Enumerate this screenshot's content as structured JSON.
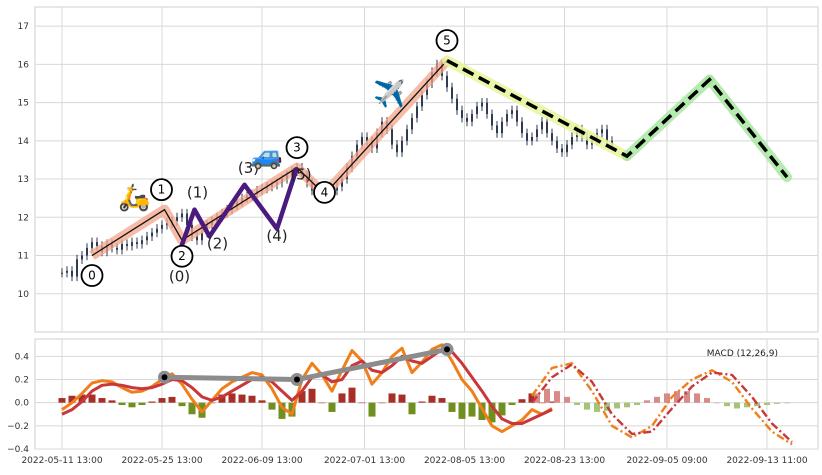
{
  "chart_data": [
    {
      "type": "candlestick-with-elliott-wave",
      "grid": true,
      "ylim": [
        9,
        17.5
      ],
      "yticks": [
        "10",
        "11",
        "12",
        "13",
        "14",
        "15",
        "16",
        "17"
      ],
      "xticks": [
        "2022-05-11 13:00",
        "2022-05-25 13:00",
        "2022-06-09 13:00",
        "2022-07-01 13:00",
        "2022-08-05 13:00",
        "2022-08-23 13:00",
        "2022-09-05 09:00",
        "2022-09-13 11:00"
      ],
      "price_series": {
        "x": [
          0,
          2,
          4,
          6,
          8,
          10,
          12,
          14,
          16,
          18,
          20,
          22,
          24,
          26,
          28,
          30,
          32,
          34,
          36,
          38,
          40,
          42,
          44,
          46,
          48,
          50,
          52,
          54,
          56,
          58,
          60,
          62,
          64,
          66,
          68,
          70,
          72,
          74,
          76,
          78,
          80,
          82,
          84,
          86,
          88,
          90,
          92,
          94,
          96,
          98,
          100,
          102,
          104,
          106,
          108,
          110,
          112,
          114,
          116,
          118,
          120,
          122,
          124,
          126,
          128,
          130,
          132,
          134,
          136,
          138,
          140,
          142,
          144,
          146,
          148,
          150,
          152,
          154,
          156,
          158,
          160,
          162,
          164,
          166,
          168,
          170,
          172,
          174,
          176,
          178,
          180,
          182,
          184,
          186,
          188,
          190,
          192,
          194,
          196,
          198,
          200,
          202,
          204,
          206,
          208,
          210,
          212,
          214,
          216,
          218,
          220
        ],
        "close": [
          10.55,
          10.6,
          10.45,
          10.9,
          11.0,
          11.2,
          11.35,
          11.25,
          11.1,
          11.3,
          11.2,
          11.15,
          11.3,
          11.25,
          11.35,
          11.3,
          11.4,
          11.5,
          11.6,
          11.7,
          11.8,
          11.85,
          11.9,
          12.0,
          12.1,
          11.8,
          11.5,
          11.4,
          11.6,
          11.8,
          11.9,
          12.0,
          12.1,
          12.2,
          12.3,
          12.4,
          12.5,
          12.55,
          12.6,
          12.7,
          12.75,
          12.8,
          12.85,
          12.9,
          13.0,
          13.1,
          13.2,
          13.3,
          13.1,
          12.9,
          12.7,
          12.6,
          12.5,
          12.6,
          12.7,
          12.8,
          13.0,
          13.3,
          13.6,
          13.9,
          14.1,
          14.0,
          13.8,
          14.2,
          14.5,
          14.3,
          13.9,
          13.7,
          14.0,
          14.3,
          14.6,
          14.9,
          15.2,
          15.5,
          15.8,
          16.0,
          15.7,
          15.4,
          15.1,
          14.8,
          14.6,
          14.5,
          14.7,
          14.9,
          15.0,
          14.7,
          14.4,
          14.2,
          14.5,
          14.7,
          14.8,
          14.5,
          14.2,
          14.0,
          14.1,
          14.3,
          14.5,
          14.2,
          14.0,
          13.8,
          13.7,
          13.9,
          14.1,
          14.3,
          14.1,
          13.9,
          14.0,
          14.2,
          14.3,
          14.0,
          13.9
        ]
      },
      "wave_points": [
        {
          "label": "0",
          "x": 12,
          "y": 11.0
        },
        {
          "label": "1",
          "x": 41,
          "y": 12.2
        },
        {
          "label": "2",
          "x": 48,
          "y": 11.4
        },
        {
          "label": "3",
          "x": 94,
          "y": 13.3
        },
        {
          "label": "4",
          "x": 105,
          "y": 12.6
        },
        {
          "label": "5",
          "x": 154,
          "y": 16.1
        }
      ],
      "sub_wave": [
        {
          "label": "(0)",
          "x": 47,
          "y": 11.1
        },
        {
          "label": "(1)",
          "x": 53,
          "y": 12.2
        },
        {
          "label": "(2)",
          "x": 59,
          "y": 11.5
        },
        {
          "label": "(3)",
          "x": 73,
          "y": 12.85
        },
        {
          "label": "(4)",
          "x": 86,
          "y": 11.7
        },
        {
          "label": "(5)",
          "x": 94,
          "y": 13.3
        }
      ],
      "projection": [
        {
          "x": 154,
          "y": 16.1
        },
        {
          "x": 226,
          "y": 13.6
        },
        {
          "x": 259,
          "y": 15.6
        },
        {
          "x": 290,
          "y": 13.05
        }
      ],
      "emojis": [
        {
          "symbol": "🛵",
          "x": 29,
          "y": 12.3
        },
        {
          "symbol": "🚙",
          "x": 82,
          "y": 13.4
        },
        {
          "symbol": "✈️",
          "x": 131,
          "y": 15.0
        }
      ]
    },
    {
      "type": "macd",
      "legend": "MACD (12,26,9)",
      "grid": true,
      "ylim": [
        -0.4,
        0.55
      ],
      "yticks": [
        "−0.4",
        "−0.2",
        "0.0",
        "0.2",
        "0.4"
      ],
      "macd": {
        "x": [
          0,
          4,
          8,
          12,
          16,
          20,
          24,
          28,
          32,
          36,
          40,
          44,
          48,
          52,
          56,
          60,
          64,
          68,
          72,
          76,
          80,
          84,
          88,
          92,
          96,
          100,
          104,
          108,
          112,
          116,
          120,
          124,
          128,
          132,
          136,
          140,
          144,
          148,
          152,
          156,
          160,
          164,
          168,
          172,
          176,
          180,
          184,
          188,
          192,
          196
        ],
        "values": [
          -0.06,
          0.0,
          0.08,
          0.17,
          0.19,
          0.18,
          0.13,
          0.09,
          0.1,
          0.14,
          0.2,
          0.25,
          0.16,
          0.03,
          -0.08,
          0.02,
          0.12,
          0.18,
          0.22,
          0.26,
          0.24,
          0.12,
          -0.04,
          -0.1,
          0.2,
          0.34,
          0.24,
          0.1,
          0.28,
          0.45,
          0.36,
          0.16,
          0.26,
          0.4,
          0.47,
          0.26,
          0.35,
          0.46,
          0.5,
          0.36,
          0.2,
          0.1,
          -0.05,
          -0.2,
          -0.25,
          -0.2,
          -0.15,
          -0.06,
          -0.1,
          -0.05
        ]
      },
      "signal": {
        "x": [
          0,
          4,
          8,
          12,
          16,
          20,
          24,
          28,
          32,
          36,
          40,
          44,
          48,
          52,
          56,
          60,
          64,
          68,
          72,
          76,
          80,
          84,
          88,
          92,
          96,
          100,
          104,
          108,
          112,
          116,
          120,
          124,
          128,
          132,
          136,
          140,
          144,
          148,
          152,
          156,
          160,
          164,
          168,
          172,
          176,
          180,
          184,
          188,
          192,
          196
        ],
        "values": [
          -0.1,
          -0.06,
          0.01,
          0.1,
          0.15,
          0.16,
          0.15,
          0.13,
          0.12,
          0.13,
          0.16,
          0.2,
          0.19,
          0.13,
          0.05,
          0.02,
          0.05,
          0.1,
          0.15,
          0.2,
          0.22,
          0.18,
          0.1,
          0.02,
          0.1,
          0.22,
          0.24,
          0.18,
          0.2,
          0.32,
          0.36,
          0.28,
          0.26,
          0.32,
          0.4,
          0.36,
          0.34,
          0.4,
          0.46,
          0.44,
          0.34,
          0.22,
          0.1,
          -0.03,
          -0.14,
          -0.18,
          -0.18,
          -0.14,
          -0.1,
          -0.06
        ]
      },
      "histogram": {
        "x": [
          0,
          4,
          8,
          12,
          16,
          20,
          24,
          28,
          32,
          36,
          40,
          44,
          48,
          52,
          56,
          60,
          64,
          68,
          72,
          76,
          80,
          84,
          88,
          92,
          96,
          100,
          104,
          108,
          112,
          116,
          120,
          124,
          128,
          132,
          136,
          140,
          144,
          148,
          152,
          156,
          160,
          164,
          168,
          172,
          176,
          180,
          184,
          188,
          192,
          196
        ],
        "values": [
          0.04,
          0.06,
          0.07,
          0.07,
          0.04,
          0.02,
          -0.02,
          -0.04,
          -0.02,
          0.01,
          0.04,
          0.05,
          -0.03,
          -0.1,
          -0.13,
          0.0,
          0.07,
          0.08,
          0.07,
          0.06,
          0.02,
          -0.06,
          -0.14,
          -0.12,
          0.1,
          0.12,
          0.0,
          -0.08,
          0.08,
          0.13,
          0.0,
          -0.12,
          0.0,
          0.08,
          0.07,
          -0.1,
          0.01,
          0.06,
          0.04,
          -0.08,
          -0.14,
          -0.12,
          -0.15,
          -0.17,
          -0.11,
          -0.02,
          0.03,
          0.08,
          0.0,
          0.01
        ]
      },
      "pivots": [
        {
          "x": 41,
          "y": 0.22
        },
        {
          "x": 94,
          "y": 0.2
        },
        {
          "x": 154,
          "y": 0.46
        }
      ],
      "forecast_a": {
        "x": [
          188,
          196,
          204,
          212,
          220,
          228,
          236,
          244,
          252,
          260,
          268,
          276,
          284,
          292
        ],
        "values": [
          0.06,
          0.3,
          0.34,
          0.1,
          -0.2,
          -0.3,
          -0.2,
          0.05,
          0.2,
          0.28,
          0.18,
          -0.05,
          -0.25,
          -0.36
        ]
      },
      "forecast_b": {
        "x": [
          188,
          196,
          204,
          212,
          220,
          228,
          236,
          244,
          252,
          260,
          268,
          276,
          284,
          292
        ],
        "values": [
          0.0,
          0.22,
          0.33,
          0.18,
          -0.1,
          -0.27,
          -0.25,
          -0.05,
          0.14,
          0.26,
          0.24,
          0.05,
          -0.18,
          -0.34
        ]
      },
      "forecast_hist": {
        "x": [
          190,
          194,
          198,
          202,
          206,
          210,
          214,
          218,
          222,
          226,
          230,
          234,
          238,
          242,
          246,
          250,
          254,
          258,
          262,
          266,
          270,
          274,
          278,
          282,
          286,
          290
        ],
        "values": [
          0.08,
          0.12,
          0.1,
          0.05,
          -0.02,
          -0.06,
          -0.08,
          -0.07,
          -0.05,
          -0.04,
          -0.02,
          0.02,
          0.05,
          0.08,
          0.1,
          0.1,
          0.08,
          0.04,
          0.0,
          -0.03,
          -0.05,
          -0.04,
          -0.03,
          -0.02,
          -0.01,
          0.0
        ]
      }
    }
  ]
}
